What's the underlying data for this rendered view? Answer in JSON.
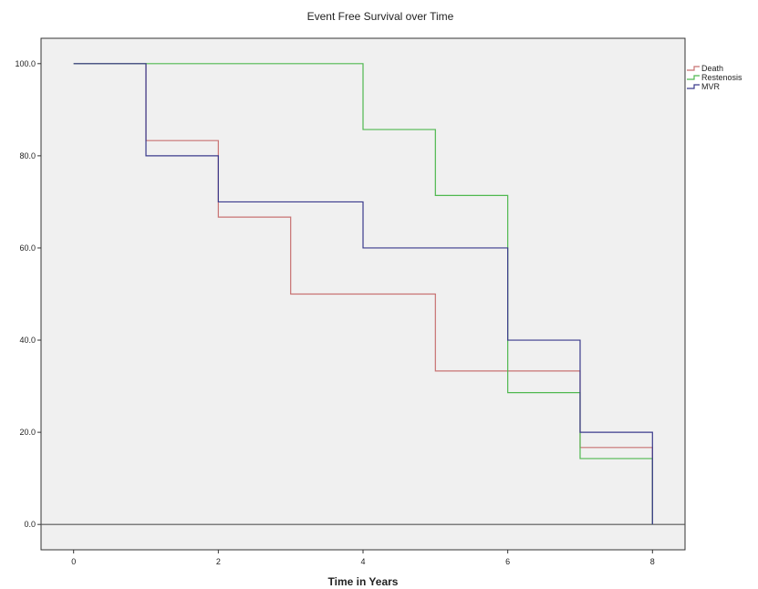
{
  "chart_data": {
    "type": "line",
    "step": true,
    "title": "Event Free Survival over Time",
    "xlabel": "Time in Years",
    "ylabel": "",
    "xlim": [
      -0.45,
      8.45
    ],
    "ylim": [
      -5.5,
      105.5
    ],
    "xticks": [
      0,
      2,
      4,
      6,
      8
    ],
    "xtick_labels": [
      "0",
      "2",
      "4",
      "6",
      "8"
    ],
    "yticks": [
      0,
      20,
      40,
      60,
      80,
      100
    ],
    "ytick_labels": [
      "0.0",
      "20.0",
      "40.0",
      "60.0",
      "80.0",
      "100.0"
    ],
    "reference_line_y": 0,
    "grid": false,
    "legend_position": "right-top",
    "plot_background": "#f0f0f0",
    "series": [
      {
        "name": "Death",
        "color": "#c87272",
        "x": [
          0,
          1,
          2,
          3,
          5,
          7,
          8
        ],
        "y": [
          100,
          83.3,
          66.7,
          50,
          33.3,
          16.7,
          0
        ]
      },
      {
        "name": "Restenosis",
        "color": "#4fb84f",
        "x": [
          0,
          4,
          5,
          6,
          7,
          8
        ],
        "y": [
          100,
          85.7,
          71.4,
          28.6,
          14.3,
          0
        ]
      },
      {
        "name": "MVR",
        "color": "#3a3a8c",
        "x": [
          0,
          1,
          2,
          4,
          6,
          7,
          8
        ],
        "y": [
          100,
          80,
          70,
          60,
          40,
          20,
          0
        ]
      }
    ]
  }
}
